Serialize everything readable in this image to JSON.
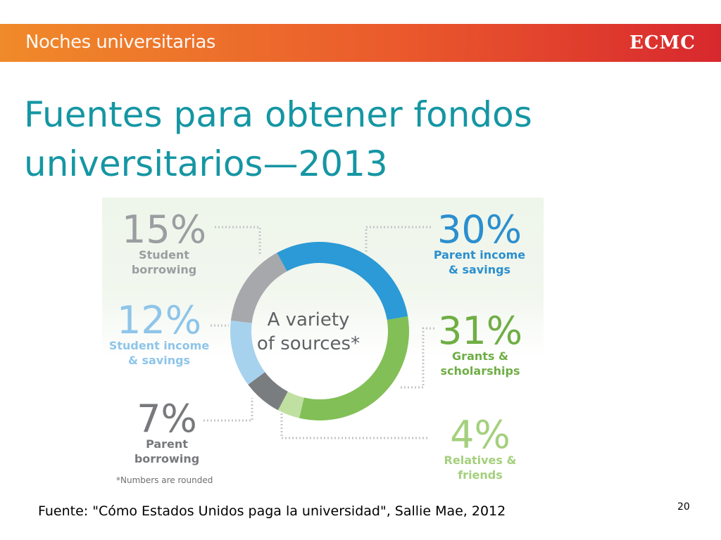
{
  "header": {
    "banner_title": "Noches universitarias",
    "logo_text": "ECMC"
  },
  "slide": {
    "title_line1": "Fuentes para obtener fondos",
    "title_line2": "universitarios—2013",
    "source_text": "Fuente: \"Cómo Estados Unidos paga la universidad\", Sallie Mae, 2012",
    "page_number": "20"
  },
  "colors": {
    "title": "#1596a3",
    "banner_start": "#f08a2a",
    "banner_end": "#d8282e"
  },
  "chart_data": {
    "type": "pie",
    "donut": true,
    "center_text": [
      "A variety",
      "of sources*"
    ],
    "footnote": "*Numbers are rounded",
    "slices": [
      {
        "percent": "30%",
        "value": 30,
        "label": [
          "Parent income",
          "& savings"
        ],
        "color": "#2b9ad6",
        "label_color": "#2b8fcf"
      },
      {
        "percent": "31%",
        "value": 31,
        "label": [
          "Grants &",
          "scholarships"
        ],
        "color": "#82bf57",
        "label_color": "#6fae45"
      },
      {
        "percent": "4%",
        "value": 4,
        "label": [
          "Relatives &",
          "friends"
        ],
        "color": "#bfe0a1",
        "label_color": "#a4d07d"
      },
      {
        "percent": "7%",
        "value": 7,
        "label": [
          "Parent",
          "borrowing"
        ],
        "color": "#7a7d80",
        "label_color": "#77797c"
      },
      {
        "percent": "12%",
        "value": 12,
        "label": [
          "Student income",
          "& savings"
        ],
        "color": "#a6d2ee",
        "label_color": "#8ec5ea"
      },
      {
        "percent": "15%",
        "value": 15,
        "label": [
          "Student",
          "borrowing"
        ],
        "color": "#a6a8ab",
        "label_color": "#9b9ea1"
      }
    ]
  }
}
